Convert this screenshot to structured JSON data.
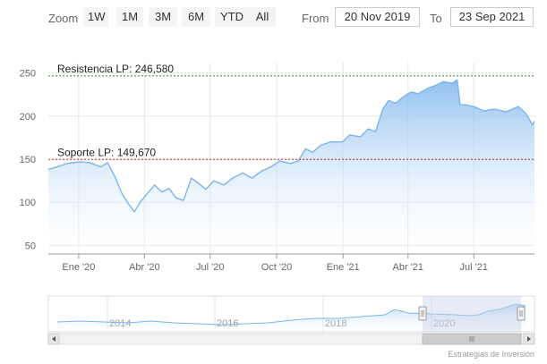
{
  "toolbar": {
    "zoom_label": "Zoom",
    "buttons": [
      "1W",
      "1M",
      "3M",
      "6M",
      "YTD",
      "All"
    ],
    "from_label": "From",
    "from_value": "20 Nov 2019",
    "to_label": "To",
    "to_value": "23 Sep 2021"
  },
  "colors": {
    "series_line": "#7cb5ec",
    "area_top": "#7cb5ec",
    "resistance_line": "#2e8b2e",
    "support_line": "#c62828",
    "grid": "#e6e6e6",
    "navigator_mask": "#c8d2e8"
  },
  "credit": "Estrategias de Inversión",
  "chart_data": {
    "type": "area",
    "y_ticks": [
      50,
      100,
      150,
      200,
      250
    ],
    "ylim": [
      40,
      262
    ],
    "xlim": [
      "2019-11-20",
      "2021-09-23"
    ],
    "x_tick_labels": [
      {
        "date": "2020-01-01",
        "label": "Ene '20"
      },
      {
        "date": "2020-04-01",
        "label": "Abr '20"
      },
      {
        "date": "2020-07-01",
        "label": "Jul '20"
      },
      {
        "date": "2020-10-01",
        "label": "Oct '20"
      },
      {
        "date": "2021-01-01",
        "label": "Ene '21"
      },
      {
        "date": "2021-04-01",
        "label": "Abr '21"
      },
      {
        "date": "2021-07-01",
        "label": "Jul '21"
      }
    ],
    "plot_lines": [
      {
        "name": "resistance",
        "label": "Resistencia LP: 246,580",
        "value": 246.58
      },
      {
        "name": "support",
        "label": "Soporte LP: 149,670",
        "value": 149.67
      }
    ],
    "series": [
      {
        "points": [
          [
            "2019-11-20",
            138
          ],
          [
            "2019-12-02",
            141
          ],
          [
            "2019-12-16",
            145
          ],
          [
            "2020-01-02",
            147
          ],
          [
            "2020-01-16",
            146
          ],
          [
            "2020-02-01",
            141
          ],
          [
            "2020-02-10",
            146
          ],
          [
            "2020-02-20",
            130
          ],
          [
            "2020-03-01",
            110
          ],
          [
            "2020-03-10",
            98
          ],
          [
            "2020-03-18",
            89
          ],
          [
            "2020-03-26",
            100
          ],
          [
            "2020-04-05",
            110
          ],
          [
            "2020-04-15",
            120
          ],
          [
            "2020-04-25",
            112
          ],
          [
            "2020-05-05",
            116
          ],
          [
            "2020-05-15",
            105
          ],
          [
            "2020-05-25",
            102
          ],
          [
            "2020-06-05",
            128
          ],
          [
            "2020-06-15",
            122
          ],
          [
            "2020-06-25",
            115
          ],
          [
            "2020-07-06",
            125
          ],
          [
            "2020-07-20",
            120
          ],
          [
            "2020-08-01",
            128
          ],
          [
            "2020-08-15",
            134
          ],
          [
            "2020-08-28",
            128
          ],
          [
            "2020-09-10",
            136
          ],
          [
            "2020-09-25",
            142
          ],
          [
            "2020-10-05",
            148
          ],
          [
            "2020-10-20",
            145
          ],
          [
            "2020-10-31",
            148
          ],
          [
            "2020-11-10",
            162
          ],
          [
            "2020-11-20",
            158
          ],
          [
            "2020-12-01",
            166
          ],
          [
            "2020-12-15",
            170
          ],
          [
            "2020-12-31",
            170
          ],
          [
            "2021-01-10",
            178
          ],
          [
            "2021-01-25",
            176
          ],
          [
            "2021-02-05",
            185
          ],
          [
            "2021-02-15",
            182
          ],
          [
            "2021-02-25",
            208
          ],
          [
            "2021-03-05",
            218
          ],
          [
            "2021-03-15",
            215
          ],
          [
            "2021-03-25",
            222
          ],
          [
            "2021-04-05",
            228
          ],
          [
            "2021-04-15",
            226
          ],
          [
            "2021-04-28",
            232
          ],
          [
            "2021-05-10",
            236
          ],
          [
            "2021-05-20",
            240
          ],
          [
            "2021-06-01",
            238
          ],
          [
            "2021-06-08",
            242
          ],
          [
            "2021-06-12",
            213
          ],
          [
            "2021-06-20",
            213
          ],
          [
            "2021-07-01",
            211
          ],
          [
            "2021-07-15",
            206
          ],
          [
            "2021-07-30",
            208
          ],
          [
            "2021-08-15",
            205
          ],
          [
            "2021-09-01",
            211
          ],
          [
            "2021-09-12",
            202
          ],
          [
            "2021-09-20",
            190
          ],
          [
            "2021-09-23",
            194
          ]
        ]
      }
    ],
    "navigator": {
      "x_tick_labels": [
        "2014",
        "2016",
        "2018",
        "2020"
      ]
    }
  }
}
